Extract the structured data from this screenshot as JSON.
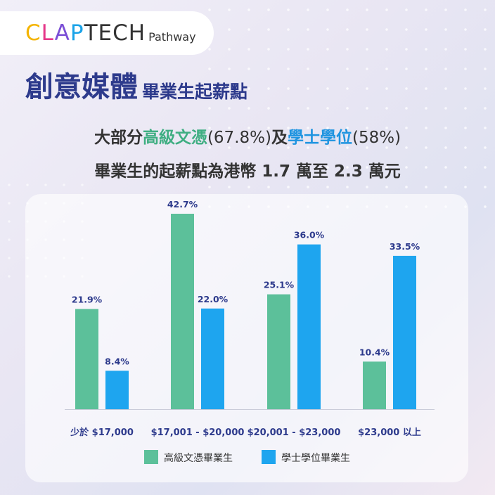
{
  "brand": {
    "logo_letters": [
      {
        "ch": "C",
        "color": "#f4b400"
      },
      {
        "ch": "L",
        "color": "#e6388a"
      },
      {
        "ch": "A",
        "color": "#7b4fd6"
      },
      {
        "ch": "P",
        "color": "#1aa3e8"
      },
      {
        "ch": "T",
        "color": "#333333"
      },
      {
        "ch": "E",
        "color": "#333333"
      },
      {
        "ch": "C",
        "color": "#333333"
      },
      {
        "ch": "H",
        "color": "#333333"
      }
    ],
    "logo_sub": "Pathway"
  },
  "title": {
    "main": "創意媒體",
    "sub": "畢業生起薪點"
  },
  "subtitle": {
    "line1": {
      "p1": "大部分",
      "p2": "高級文憑",
      "p3": "(67.8%)",
      "p4": "及",
      "p5": "學士學位",
      "p6": "(58%)"
    },
    "line2": "畢業生的起薪點為港幣 1.7 萬至 2.3 萬元"
  },
  "colors": {
    "series1": "#5cc09a",
    "series2": "#1ea5ef",
    "title": "#2d3a8c",
    "labels": "#2d3a8c"
  },
  "chart_data": {
    "type": "bar",
    "categories": [
      "少於 $17,000",
      "$17,001 - $20,000",
      "$20,001 - $23,000",
      "$23,000 以上"
    ],
    "series": [
      {
        "name": "高級文憑畢業生",
        "values": [
          21.9,
          42.7,
          25.1,
          10.4
        ]
      },
      {
        "name": "學士學位畢業生",
        "values": [
          8.4,
          22.0,
          36.0,
          33.5
        ]
      }
    ],
    "value_labels": [
      [
        "21.9%",
        "42.7%",
        "25.1%",
        "10.4%"
      ],
      [
        "8.4%",
        "22.0%",
        "36.0%",
        "33.5%"
      ]
    ],
    "ylim": [
      0,
      42.7
    ],
    "legend": "bottom",
    "grid": false
  }
}
